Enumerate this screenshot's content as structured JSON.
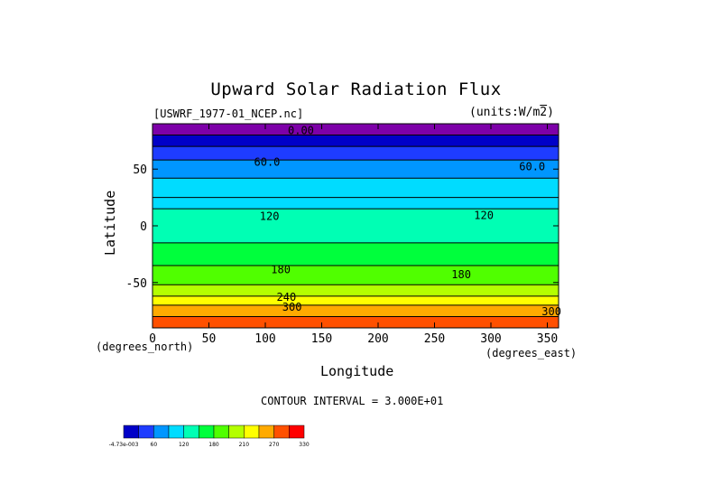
{
  "chart_data": {
    "type": "heatmap",
    "title": "Upward Solar Radiation Flux",
    "file_label": "[USWRF_1977-01_NCEP.nc]",
    "units_label": "(units:W/m^2)",
    "xlabel": "Longitude",
    "ylabel": "Latitude",
    "x_units_left": "(degrees_north)",
    "x_units_right": "(degrees_east)",
    "xlim": [
      0,
      360
    ],
    "ylim": [
      -90,
      90
    ],
    "x_ticks": [
      0,
      50,
      100,
      150,
      200,
      250,
      300,
      350
    ],
    "y_ticks": [
      50,
      0,
      -50
    ],
    "contour_note": "CONTOUR INTERVAL = 3.000E+01",
    "colorbar": {
      "labels": [
        "-4.73e-003",
        "60",
        "120",
        "180",
        "210",
        "270",
        "330"
      ],
      "colors": [
        "#0000c8",
        "#1e3cff",
        "#0096ff",
        "#00dcff",
        "#00ffb4",
        "#00ff3c",
        "#50ff00",
        "#b4ff00",
        "#ffff00",
        "#ffaa00",
        "#ff5000",
        "#ff0000"
      ]
    },
    "bands": [
      {
        "lat": [
          80,
          90
        ],
        "value": 0
      },
      {
        "lat": [
          70,
          80
        ],
        "value": 15
      },
      {
        "lat": [
          58,
          70
        ],
        "value": 45
      },
      {
        "lat": [
          42,
          58
        ],
        "value": 75
      },
      {
        "lat": [
          25,
          42
        ],
        "value": 95
      },
      {
        "lat": [
          15,
          25
        ],
        "value": 115
      },
      {
        "lat": [
          -15,
          15
        ],
        "value": 140
      },
      {
        "lat": [
          -35,
          -15
        ],
        "value": 165
      },
      {
        "lat": [
          -52,
          -35
        ],
        "value": 185
      },
      {
        "lat": [
          -62,
          -52
        ],
        "value": 215
      },
      {
        "lat": [
          -70,
          -62
        ],
        "value": 250
      },
      {
        "lat": [
          -80,
          -70
        ],
        "value": 290
      },
      {
        "lat": [
          -90,
          -80
        ],
        "value": 320
      }
    ],
    "contour_labels": [
      {
        "text": "0.00",
        "lon": 120,
        "lat": 81
      },
      {
        "text": "60.0",
        "lon": 90,
        "lat": 53
      },
      {
        "text": "60.0",
        "lon": 325,
        "lat": 49
      },
      {
        "text": "120",
        "lon": 95,
        "lat": 5
      },
      {
        "text": "120",
        "lon": 285,
        "lat": 6
      },
      {
        "text": "180",
        "lon": 105,
        "lat": -42
      },
      {
        "text": "180",
        "lon": 265,
        "lat": -46
      },
      {
        "text": "240",
        "lon": 110,
        "lat": -66
      },
      {
        "text": "300",
        "lon": 115,
        "lat": -75
      },
      {
        "text": "300",
        "lon": 345,
        "lat": -79
      }
    ]
  }
}
